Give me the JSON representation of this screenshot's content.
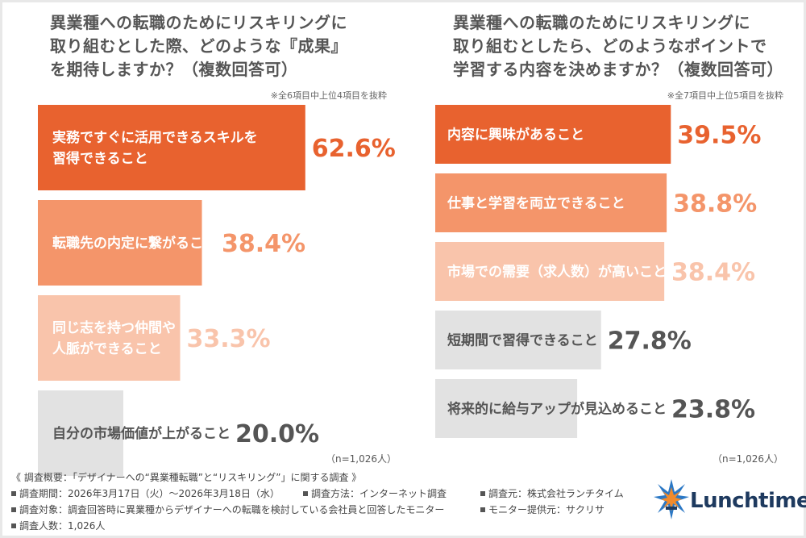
{
  "left_panel": {
    "title": "異業種への転職のためにリスキリングに\n取り組むとした際、どのような『成果』\nを期待しますか？（複数回答可）",
    "note": "※全6項目中上位4項目を抜粋",
    "n_label": "（n=1,026人）"
  },
  "right_panel": {
    "title": "異業種への転職のためにリスキリングに\n取り組むとしたら、どのようなポイントで\n学習する内容を決めますか？（複数回答可）",
    "note": "※全7項目中上位5項目を抜粋",
    "n_label": "（n=1,026人）"
  },
  "colors": {
    "rank1": "#e8622f",
    "rank2": "#f4956a",
    "rank3": "#f9c4ab",
    "other": "#e2e2e2",
    "value_rank1": "#e8622f",
    "value_rank2": "#f4956a",
    "value_rank3": "#f9c4ab",
    "value_other": "#555555"
  },
  "chart_data": [
    {
      "type": "bar",
      "orientation": "horizontal",
      "categories": [
        "実務ですぐに活用できるスキルを\n習得できること",
        "転職先の内定に繋がること",
        "同じ志を持つ仲間や\n人脈ができること",
        "自分の市場価値が上がること"
      ],
      "values": [
        62.6,
        38.4,
        33.3,
        20.0
      ],
      "value_labels": [
        "62.6%",
        "38.4%",
        "33.3%",
        "20.0%"
      ],
      "unit": "%"
    },
    {
      "type": "bar",
      "orientation": "horizontal",
      "categories": [
        "内容に興味があること",
        "仕事と学習を両立できること",
        "市場での需要（求人数）が高いこと",
        "短期間で習得できること",
        "将来的に給与アップが見込めること"
      ],
      "values": [
        39.5,
        38.8,
        38.4,
        27.8,
        23.8
      ],
      "value_labels": [
        "39.5%",
        "38.8%",
        "38.4%",
        "27.8%",
        "23.8%"
      ],
      "unit": "%"
    }
  ],
  "footer": {
    "heading": "《 調査概要：「デザイナーへの“異業種転職”と“リスキリング”」に関する調査 》",
    "period": "調査期間：2026年3月17日（火）〜2026年3月18日（水）",
    "method": "調査方法：インターネット調査",
    "source": "調査元：株式会社ランチタイム",
    "target": "調査対象：調査回答時に異業種からデザイナーへの転職を検討している会社員と回答したモニター",
    "provider": "モニター提供元：サクリサ",
    "count": "調査人数：1,026人"
  },
  "logo": {
    "text": "Lunchtime",
    "icon": "lunchtime-burst-logo"
  }
}
